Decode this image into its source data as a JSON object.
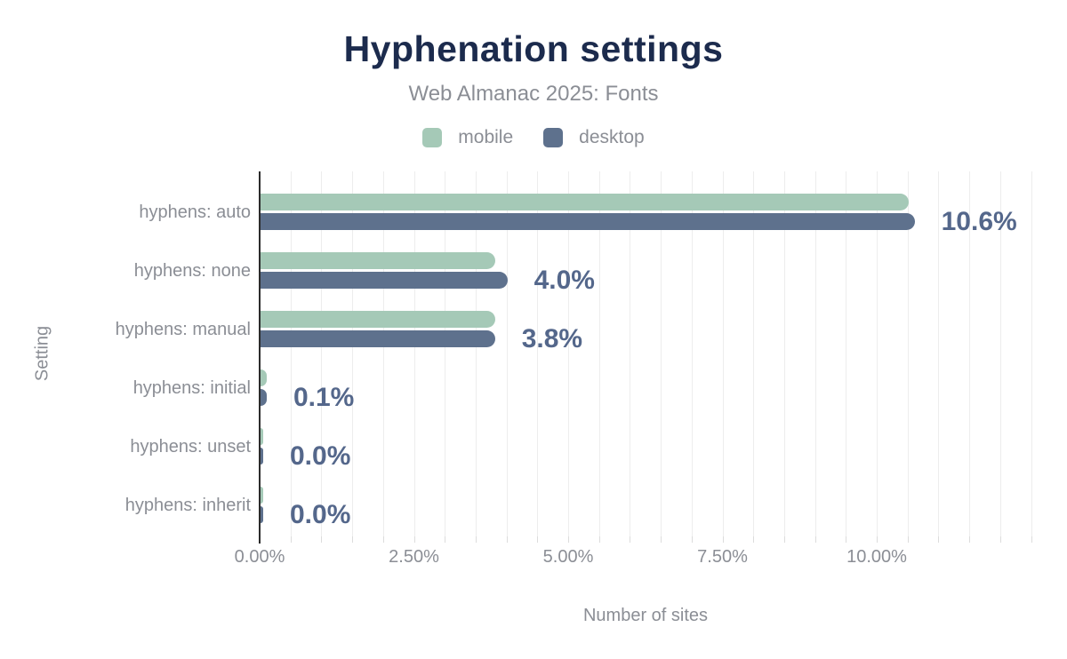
{
  "chart_data": {
    "type": "bar",
    "orientation": "horizontal",
    "title": "Hyphenation settings",
    "subtitle": "Web Almanac 2025: Fonts",
    "categories": [
      "hyphens: auto",
      "hyphens: none",
      "hyphens: manual",
      "hyphens: initial",
      "hyphens: unset",
      "hyphens: inherit"
    ],
    "series": [
      {
        "name": "mobile",
        "color": "#a5c9b7",
        "values": [
          10.5,
          3.8,
          3.8,
          0.1,
          0.04,
          0.04
        ]
      },
      {
        "name": "desktop",
        "color": "#5e718d",
        "values": [
          10.6,
          4.0,
          3.8,
          0.1,
          0.04,
          0.04
        ]
      }
    ],
    "value_labels": [
      "10.6%",
      "4.0%",
      "3.8%",
      "0.1%",
      "0.0%",
      "0.0%"
    ],
    "xlabel": "Number of sites",
    "ylabel": "Setting",
    "xlim": [
      0,
      12.5
    ],
    "x_ticks": [
      {
        "value": 0,
        "label": "0.00%"
      },
      {
        "value": 2.5,
        "label": "2.50%"
      },
      {
        "value": 5,
        "label": "5.00%"
      },
      {
        "value": 7.5,
        "label": "7.50%"
      },
      {
        "value": 10,
        "label": "10.00%"
      }
    ],
    "grid": {
      "minor_step": 0.5,
      "color": "#ededed",
      "shown": true
    },
    "legend_position": "top"
  },
  "colors": {
    "title": "#1c2b4d",
    "muted_text": "#8b8e95",
    "value_label": "#54678b",
    "mobile": "#a5c9b7",
    "desktop": "#5e718d"
  }
}
